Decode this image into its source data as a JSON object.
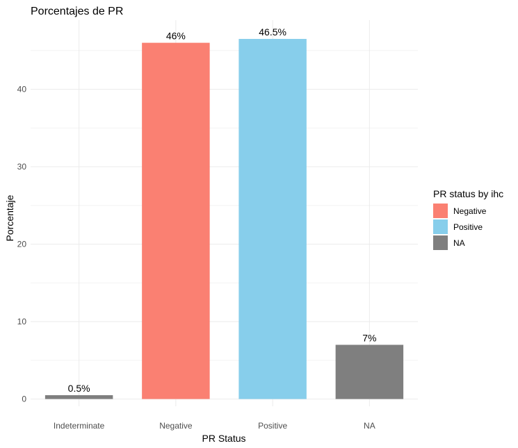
{
  "chart_data": {
    "type": "bar",
    "title": "Porcentajes de PR",
    "xlabel": "PR Status",
    "ylabel": "Porcentaje",
    "categories": [
      "Indeterminate",
      "Negative",
      "Positive",
      "NA"
    ],
    "values": [
      0.5,
      46,
      46.5,
      7
    ],
    "data_labels": [
      "0.5%",
      "46%",
      "46.5%",
      "7%"
    ],
    "bar_colors": [
      "#7f7f7f",
      "#fa8072",
      "#87ceeb",
      "#7f7f7f"
    ],
    "ylim": [
      0,
      48.8
    ],
    "yticks": [
      0,
      10,
      20,
      30,
      40
    ],
    "ytick_labels": [
      "0",
      "10",
      "20",
      "30",
      "40"
    ],
    "grid": true,
    "legend": {
      "title": "PR status by ihc",
      "position": "right",
      "items": [
        {
          "label": "Negative",
          "color": "#fa8072"
        },
        {
          "label": "Positive",
          "color": "#87ceeb"
        },
        {
          "label": "NA",
          "color": "#7f7f7f"
        }
      ]
    }
  }
}
